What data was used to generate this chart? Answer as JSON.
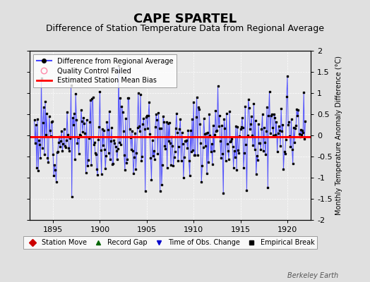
{
  "title": "CAPE SPARTEL",
  "subtitle": "Difference of Station Temperature Data from Regional Average",
  "ylabel": "Monthly Temperature Anomaly Difference (°C)",
  "xlim": [
    1892.5,
    1922.5
  ],
  "ylim": [
    -2,
    2
  ],
  "yticks": [
    -2,
    -1.5,
    -1,
    -0.5,
    0,
    0.5,
    1,
    1.5,
    2
  ],
  "xticks": [
    1895,
    1900,
    1905,
    1910,
    1915,
    1920
  ],
  "bias_value": -0.04,
  "line_color": "#4444ff",
  "marker_color": "#000000",
  "bias_color": "#ff0000",
  "background_color": "#e0e0e0",
  "plot_bg_color": "#e8e8e8",
  "grid_color": "#ffffff",
  "watermark": "Berkeley Earth",
  "title_fontsize": 13,
  "subtitle_fontsize": 9,
  "seed": 12,
  "n_years": 29,
  "start_year": 1893
}
